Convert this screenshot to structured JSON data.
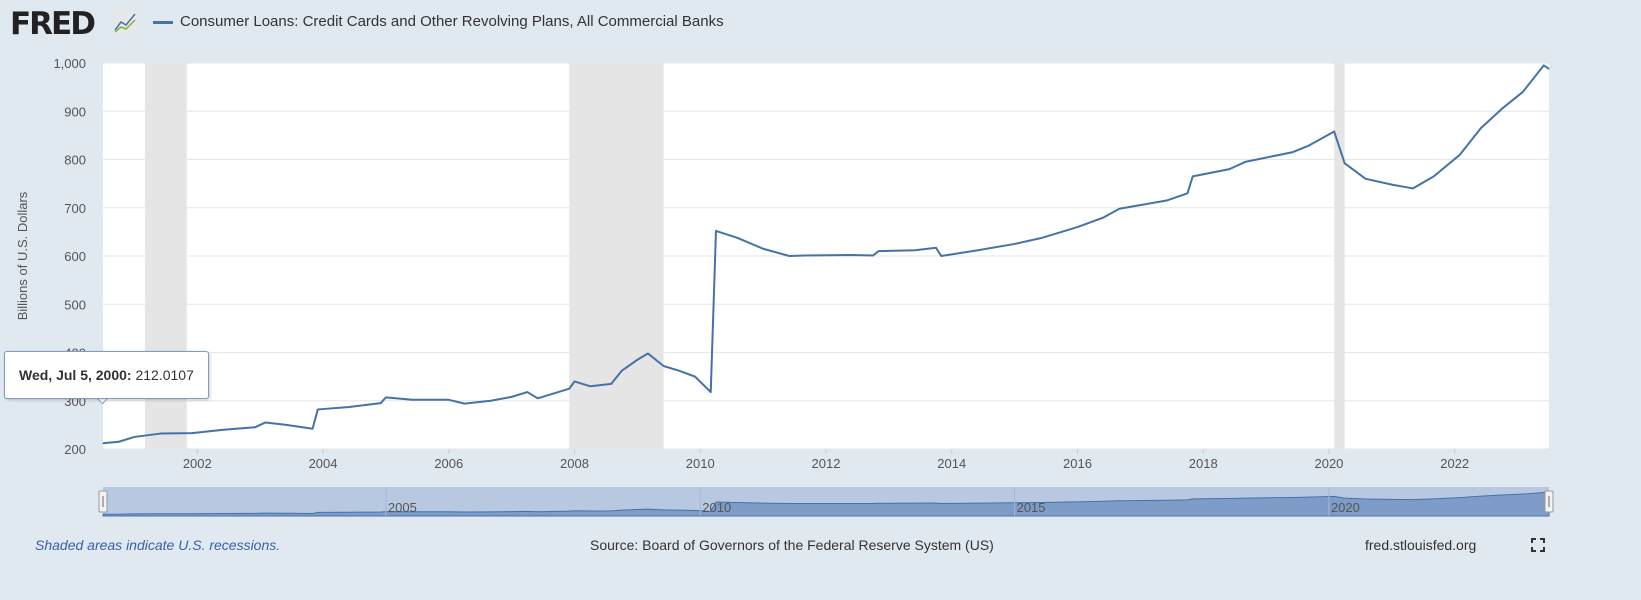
{
  "header": {
    "logo": "FRED",
    "logo_icon": "line-chart-icon",
    "title": "Consumer Loans: Credit Cards and Other Revolving Plans, All Commercial Banks"
  },
  "tooltip": {
    "date": "Wed, Jul 5, 2000:",
    "value": "212.0107"
  },
  "footer": {
    "note": "Shaded areas indicate U.S. recessions.",
    "source": "Source: Board of Governors of the Federal Reserve System (US)",
    "site": "fred.stlouisfed.org",
    "fullscreen_icon": "fullscreen-icon"
  },
  "colors": {
    "line": "#4572a7",
    "recession": "#e5e5e5",
    "background": "#e1e9f0",
    "navigator_fill": "#7f9cc8",
    "navigator_mask": "#b9c8e1"
  },
  "chart_data": {
    "type": "line",
    "title": "Consumer Loans: Credit Cards and Other Revolving Plans, All Commercial Banks",
    "ylabel": "Billions of U.S. Dollars",
    "xlabel": "",
    "ylim": [
      200,
      1000
    ],
    "xlim": [
      "2000-07",
      "2023-07"
    ],
    "grid": true,
    "yticks": [
      "200",
      "300",
      "400",
      "500",
      "600",
      "700",
      "800",
      "900",
      "1,000"
    ],
    "xticks": [
      "2002",
      "2004",
      "2006",
      "2008",
      "2010",
      "2012",
      "2014",
      "2016",
      "2018",
      "2020",
      "2022"
    ],
    "navigator_ticks": [
      "2005",
      "2010",
      "2015",
      "2020"
    ],
    "recessions": [
      [
        "2001-03",
        "2001-11"
      ],
      [
        "2007-12",
        "2009-06"
      ],
      [
        "2020-02",
        "2020-04"
      ]
    ],
    "series": [
      {
        "points": [
          [
            "2000-07",
            212
          ],
          [
            "2000-10",
            215
          ],
          [
            "2001-01",
            225
          ],
          [
            "2001-06",
            232
          ],
          [
            "2001-12",
            233
          ],
          [
            "2002-06",
            240
          ],
          [
            "2002-12",
            245
          ],
          [
            "2003-02",
            255
          ],
          [
            "2003-06",
            250
          ],
          [
            "2003-11",
            242
          ],
          [
            "2003-12",
            282
          ],
          [
            "2004-06",
            287
          ],
          [
            "2004-12",
            295
          ],
          [
            "2005-01",
            307
          ],
          [
            "2005-06",
            302
          ],
          [
            "2006-01",
            302
          ],
          [
            "2006-04",
            294
          ],
          [
            "2006-09",
            300
          ],
          [
            "2007-01",
            308
          ],
          [
            "2007-04",
            318
          ],
          [
            "2007-06",
            305
          ],
          [
            "2007-12",
            325
          ],
          [
            "2008-01",
            340
          ],
          [
            "2008-04",
            330
          ],
          [
            "2008-08",
            335
          ],
          [
            "2008-10",
            362
          ],
          [
            "2009-01",
            385
          ],
          [
            "2009-03",
            398
          ],
          [
            "2009-06",
            372
          ],
          [
            "2009-09",
            362
          ],
          [
            "2009-12",
            350
          ],
          [
            "2010-03",
            318
          ],
          [
            "2010-04",
            652
          ],
          [
            "2010-08",
            638
          ],
          [
            "2011-01",
            615
          ],
          [
            "2011-06",
            600
          ],
          [
            "2011-09",
            601
          ],
          [
            "2012-06",
            602
          ],
          [
            "2012-10",
            601
          ],
          [
            "2012-11",
            610
          ],
          [
            "2013-06",
            612
          ],
          [
            "2013-10",
            617
          ],
          [
            "2013-11",
            600
          ],
          [
            "2014-06",
            612
          ],
          [
            "2015-01",
            625
          ],
          [
            "2015-06",
            637
          ],
          [
            "2016-01",
            660
          ],
          [
            "2016-06",
            680
          ],
          [
            "2016-09",
            698
          ],
          [
            "2017-06",
            715
          ],
          [
            "2017-10",
            730
          ],
          [
            "2017-11",
            765
          ],
          [
            "2018-06",
            780
          ],
          [
            "2018-09",
            795
          ],
          [
            "2019-06",
            815
          ],
          [
            "2019-09",
            828
          ],
          [
            "2020-02",
            858
          ],
          [
            "2020-04",
            792
          ],
          [
            "2020-08",
            760
          ],
          [
            "2021-01",
            748
          ],
          [
            "2021-05",
            740
          ],
          [
            "2021-09",
            765
          ],
          [
            "2022-02",
            810
          ],
          [
            "2022-06",
            865
          ],
          [
            "2022-10",
            905
          ],
          [
            "2023-02",
            940
          ],
          [
            "2023-06",
            995
          ],
          [
            "2023-07",
            988
          ]
        ]
      }
    ]
  }
}
